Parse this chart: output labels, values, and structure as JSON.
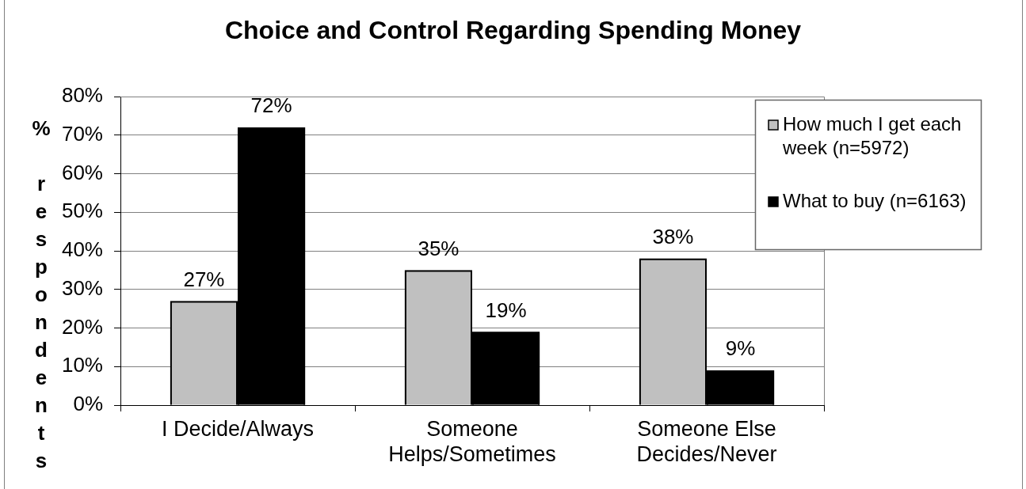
{
  "chart_data": {
    "type": "bar",
    "title": "Choice and Control Regarding Spending Money",
    "ylabel": "% respondents",
    "categories": [
      "I Decide/Always",
      "Someone Helps/Sometimes",
      "Someone Else Decides/Never"
    ],
    "series": [
      {
        "name": "How much I get each week (n=5972)",
        "color": "#c0c0c0",
        "values": [
          27,
          35,
          38
        ],
        "value_labels": [
          "27%",
          "35%",
          "38%"
        ]
      },
      {
        "name": "What to buy (n=6163)",
        "color": "#000000",
        "values": [
          72,
          19,
          9
        ],
        "value_labels": [
          "72%",
          "19%",
          "9%"
        ]
      }
    ],
    "ylim": [
      0,
      80
    ],
    "yticks": [
      {
        "value": 0,
        "label": "0%"
      },
      {
        "value": 10,
        "label": "10%"
      },
      {
        "value": 20,
        "label": "20%"
      },
      {
        "value": 30,
        "label": "30%"
      },
      {
        "value": 40,
        "label": "40%"
      },
      {
        "value": 50,
        "label": "50%"
      },
      {
        "value": 60,
        "label": "60%"
      },
      {
        "value": 70,
        "label": "70%"
      },
      {
        "value": 80,
        "label": "80%"
      }
    ],
    "grid": "y",
    "legend": "top right"
  }
}
